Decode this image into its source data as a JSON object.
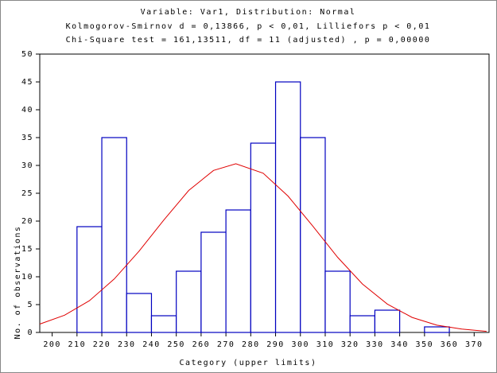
{
  "chart_data": {
    "type": "histogram",
    "title": "Variable: Var1, Distribution: Normal",
    "subtitle": [
      "Kolmogorov-Smirnov d = 0,13866, p < 0,01, Lilliefors p < 0,01",
      "Chi-Square test = 161,13511, df = 11 (adjusted) , p = 0,00000"
    ],
    "x_label": "Category (upper limits)",
    "y_label": "No. of observations",
    "bins": [
      210,
      220,
      230,
      240,
      250,
      260,
      270,
      280,
      290,
      300,
      310,
      320,
      330,
      340,
      350,
      360,
      370
    ],
    "values": [
      19,
      35,
      7,
      3,
      11,
      18,
      22,
      34,
      45,
      35,
      11,
      3,
      4,
      0,
      1,
      0
    ],
    "color": "#0000c0",
    "curve": {
      "color": "#e00000",
      "x": [
        195,
        205,
        215,
        225,
        235,
        245,
        255,
        265,
        274,
        285,
        295,
        305,
        315,
        325,
        335,
        345,
        355,
        365,
        375
      ],
      "values": [
        1.5,
        3.1,
        5.7,
        9.6,
        14.6,
        20.2,
        25.5,
        29.1,
        30.3,
        28.6,
        24.5,
        19.1,
        13.5,
        8.7,
        5.1,
        2.7,
        1.3,
        0.6,
        0.2
      ]
    },
    "xlim": [
      195,
      376
    ],
    "xticks": [
      200,
      210,
      220,
      230,
      240,
      250,
      260,
      270,
      280,
      290,
      300,
      310,
      320,
      330,
      340,
      350,
      360,
      370
    ],
    "ylim": [
      0,
      50
    ],
    "yticks": [
      0,
      5,
      10,
      15,
      20,
      25,
      30,
      35,
      40,
      45,
      50
    ]
  }
}
